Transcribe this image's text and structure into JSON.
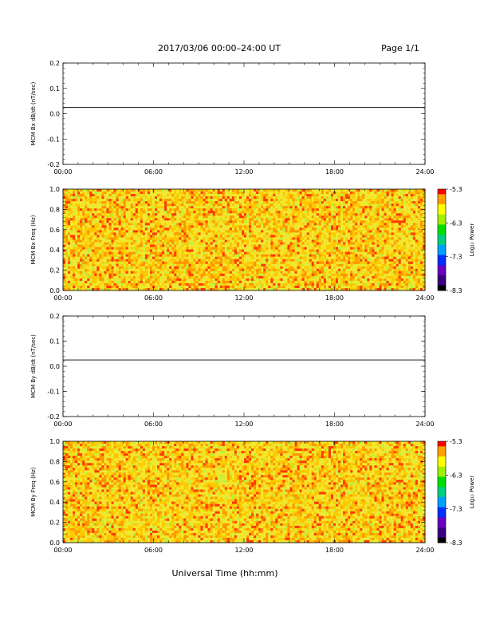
{
  "header": {
    "date_range": "2017/03/06  00:00–24:00 UT",
    "page": "Page 1/1"
  },
  "xaxis_title": "Universal Time (hh:mm)",
  "colorbar": {
    "label": "Log₁₀ Power",
    "tick_labels": [
      "-5.3",
      "-6.3",
      "-7.3",
      "-8.3"
    ],
    "range": [
      -8.3,
      -5.3
    ],
    "colors": [
      "#000000",
      "#3a0080",
      "#6a00c0",
      "#0030ff",
      "#00a0ff",
      "#00d080",
      "#00e000",
      "#a0f000",
      "#ffff00",
      "#ffa000",
      "#ff0000"
    ]
  },
  "chart_data": [
    {
      "type": "line",
      "ylabel": "MCM Bx dB/dt (nT/sec)",
      "x_tick_labels": [
        "00:00",
        "06:00",
        "12:00",
        "18:00",
        "24:00"
      ],
      "y_tick_labels": [
        "0.2",
        "0.1",
        "0.0",
        "-0.1",
        "-0.2"
      ],
      "xlim": [
        0,
        24
      ],
      "ylim": [
        -0.2,
        0.2
      ],
      "series": [
        {
          "x": [
            0,
            24
          ],
          "y": [
            0.025,
            0.025
          ]
        }
      ]
    },
    {
      "type": "heatmap",
      "ylabel": "MCM Bx Freq (Hz)",
      "x_tick_labels": [
        "00:00",
        "06:00",
        "12:00",
        "18:00",
        "24:00"
      ],
      "y_tick_labels": [
        "1.0",
        "0.8",
        "0.6",
        "0.4",
        "0.2",
        "0.0"
      ],
      "xlim": [
        0,
        24
      ],
      "ylim": [
        0.0,
        1.0
      ],
      "value_range": [
        -8.3,
        -5.3
      ],
      "typical_value": -5.6
    },
    {
      "type": "line",
      "ylabel": "MCM By dB/dt (nT/sec)",
      "x_tick_labels": [
        "00:00",
        "06:00",
        "12:00",
        "18:00",
        "24:00"
      ],
      "y_tick_labels": [
        "0.2",
        "0.1",
        "0.0",
        "-0.1",
        "-0.2"
      ],
      "xlim": [
        0,
        24
      ],
      "ylim": [
        -0.2,
        0.2
      ],
      "series": [
        {
          "x": [
            0,
            24
          ],
          "y": [
            0.025,
            0.025
          ]
        }
      ]
    },
    {
      "type": "heatmap",
      "ylabel": "MCM By Freq (Hz)",
      "x_tick_labels": [
        "00:00",
        "06:00",
        "12:00",
        "18:00",
        "24:00"
      ],
      "y_tick_labels": [
        "1.0",
        "0.8",
        "0.6",
        "0.4",
        "0.2",
        "0.0"
      ],
      "xlim": [
        0,
        24
      ],
      "ylim": [
        0.0,
        1.0
      ],
      "value_range": [
        -8.3,
        -5.3
      ],
      "typical_value": -5.6
    }
  ]
}
